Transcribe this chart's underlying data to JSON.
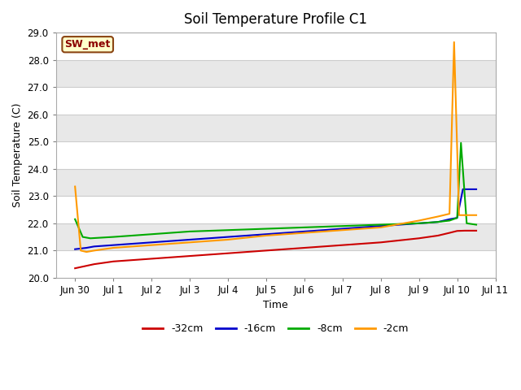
{
  "title": "Soil Temperature Profile C1",
  "xlabel": "Time",
  "ylabel": "Soil Temperature (C)",
  "annotation": "SW_met",
  "ylim": [
    20.0,
    29.0
  ],
  "yticks": [
    20.0,
    21.0,
    22.0,
    23.0,
    24.0,
    25.0,
    26.0,
    27.0,
    28.0,
    29.0
  ],
  "xtick_labels": [
    "Jun 30",
    "Jul 1",
    "Jul 2",
    "Jul 3",
    "Jul 4",
    "Jul 5",
    "Jul 6",
    "Jul 7",
    "Jul 8",
    "Jul 9",
    "Jul 10",
    "Jul 11"
  ],
  "series": {
    "-32cm": {
      "color": "#cc0000",
      "x": [
        0,
        0.5,
        1,
        2,
        3,
        4,
        5,
        6,
        7,
        8,
        9,
        9.5,
        9.8,
        10.0,
        10.2,
        10.5
      ],
      "y": [
        20.35,
        20.5,
        20.6,
        20.7,
        20.8,
        20.9,
        21.0,
        21.1,
        21.2,
        21.3,
        21.45,
        21.55,
        21.65,
        21.72,
        21.73,
        21.73
      ]
    },
    "-16cm": {
      "color": "#0000cc",
      "x": [
        0,
        0.3,
        0.5,
        1,
        2,
        3,
        4,
        5,
        6,
        7,
        8,
        9,
        9.5,
        9.8,
        10.0,
        10.15,
        10.5
      ],
      "y": [
        21.05,
        21.1,
        21.15,
        21.2,
        21.3,
        21.4,
        21.5,
        21.6,
        21.7,
        21.8,
        21.9,
        22.0,
        22.05,
        22.15,
        22.2,
        23.25,
        23.25
      ]
    },
    "-8cm": {
      "color": "#00aa00",
      "x": [
        0,
        0.2,
        0.4,
        1,
        2,
        3,
        4,
        5,
        6,
        7,
        8,
        9,
        9.5,
        9.8,
        10.0,
        10.1,
        10.25,
        10.5
      ],
      "y": [
        22.15,
        21.5,
        21.45,
        21.5,
        21.6,
        21.7,
        21.75,
        21.8,
        21.85,
        21.9,
        21.95,
        22.0,
        22.05,
        22.1,
        22.2,
        24.95,
        22.0,
        21.95
      ]
    },
    "-2cm": {
      "color": "#ff9900",
      "x": [
        0,
        0.15,
        0.3,
        0.5,
        1,
        2,
        3,
        4,
        5,
        6,
        7,
        8,
        9,
        9.5,
        9.8,
        9.92,
        10.05,
        10.2,
        10.5
      ],
      "y": [
        23.35,
        21.0,
        20.95,
        21.0,
        21.1,
        21.2,
        21.3,
        21.4,
        21.55,
        21.65,
        21.75,
        21.85,
        22.1,
        22.25,
        22.35,
        28.65,
        22.3,
        22.3,
        22.3
      ]
    }
  },
  "legend_entries": [
    "-32cm",
    "-16cm",
    "-8cm",
    "-2cm"
  ],
  "legend_colors": [
    "#cc0000",
    "#0000cc",
    "#00aa00",
    "#ff9900"
  ],
  "band_color_even": "#ffffff",
  "band_color_odd": "#e8e8e8",
  "grid_line_color": "#cccccc",
  "title_fontsize": 12,
  "axis_fontsize": 9,
  "tick_fontsize": 8.5
}
